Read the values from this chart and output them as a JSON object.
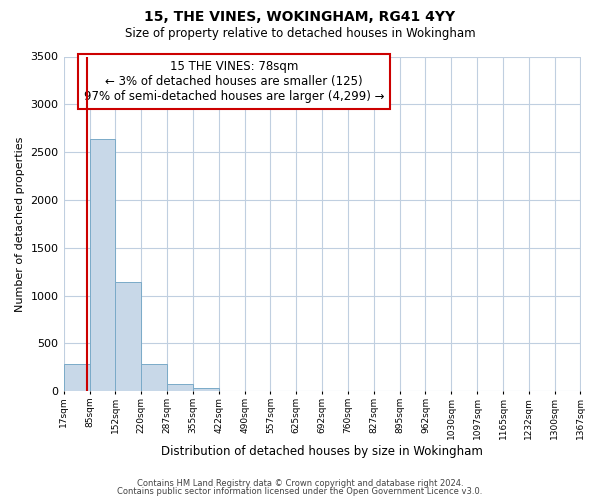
{
  "title": "15, THE VINES, WOKINGHAM, RG41 4YY",
  "subtitle": "Size of property relative to detached houses in Wokingham",
  "xlabel": "Distribution of detached houses by size in Wokingham",
  "ylabel": "Number of detached properties",
  "bar_edges": [
    17,
    85,
    152,
    220,
    287,
    355,
    422,
    490,
    557,
    625,
    692,
    760,
    827,
    895,
    962,
    1030,
    1097,
    1165,
    1232,
    1300,
    1367
  ],
  "bar_heights": [
    280,
    2640,
    1140,
    280,
    80,
    30,
    0,
    0,
    0,
    0,
    0,
    0,
    0,
    0,
    0,
    0,
    0,
    0,
    0,
    0
  ],
  "bar_color": "#c8d8e8",
  "bar_edge_color": "#7aaac8",
  "property_line_x": 78,
  "property_line_color": "#cc0000",
  "annotation_box_color": "#cc0000",
  "annotation_text_line1": "15 THE VINES: 78sqm",
  "annotation_text_line2": "← 3% of detached houses are smaller (125)",
  "annotation_text_line3": "97% of semi-detached houses are larger (4,299) →",
  "ylim": [
    0,
    3500
  ],
  "yticks": [
    0,
    500,
    1000,
    1500,
    2000,
    2500,
    3000,
    3500
  ],
  "tick_labels": [
    "17sqm",
    "85sqm",
    "152sqm",
    "220sqm",
    "287sqm",
    "355sqm",
    "422sqm",
    "490sqm",
    "557sqm",
    "625sqm",
    "692sqm",
    "760sqm",
    "827sqm",
    "895sqm",
    "962sqm",
    "1030sqm",
    "1097sqm",
    "1165sqm",
    "1232sqm",
    "1300sqm",
    "1367sqm"
  ],
  "footer_line1": "Contains HM Land Registry data © Crown copyright and database right 2024.",
  "footer_line2": "Contains public sector information licensed under the Open Government Licence v3.0.",
  "bg_color": "#ffffff",
  "grid_color": "#c0cfe0"
}
